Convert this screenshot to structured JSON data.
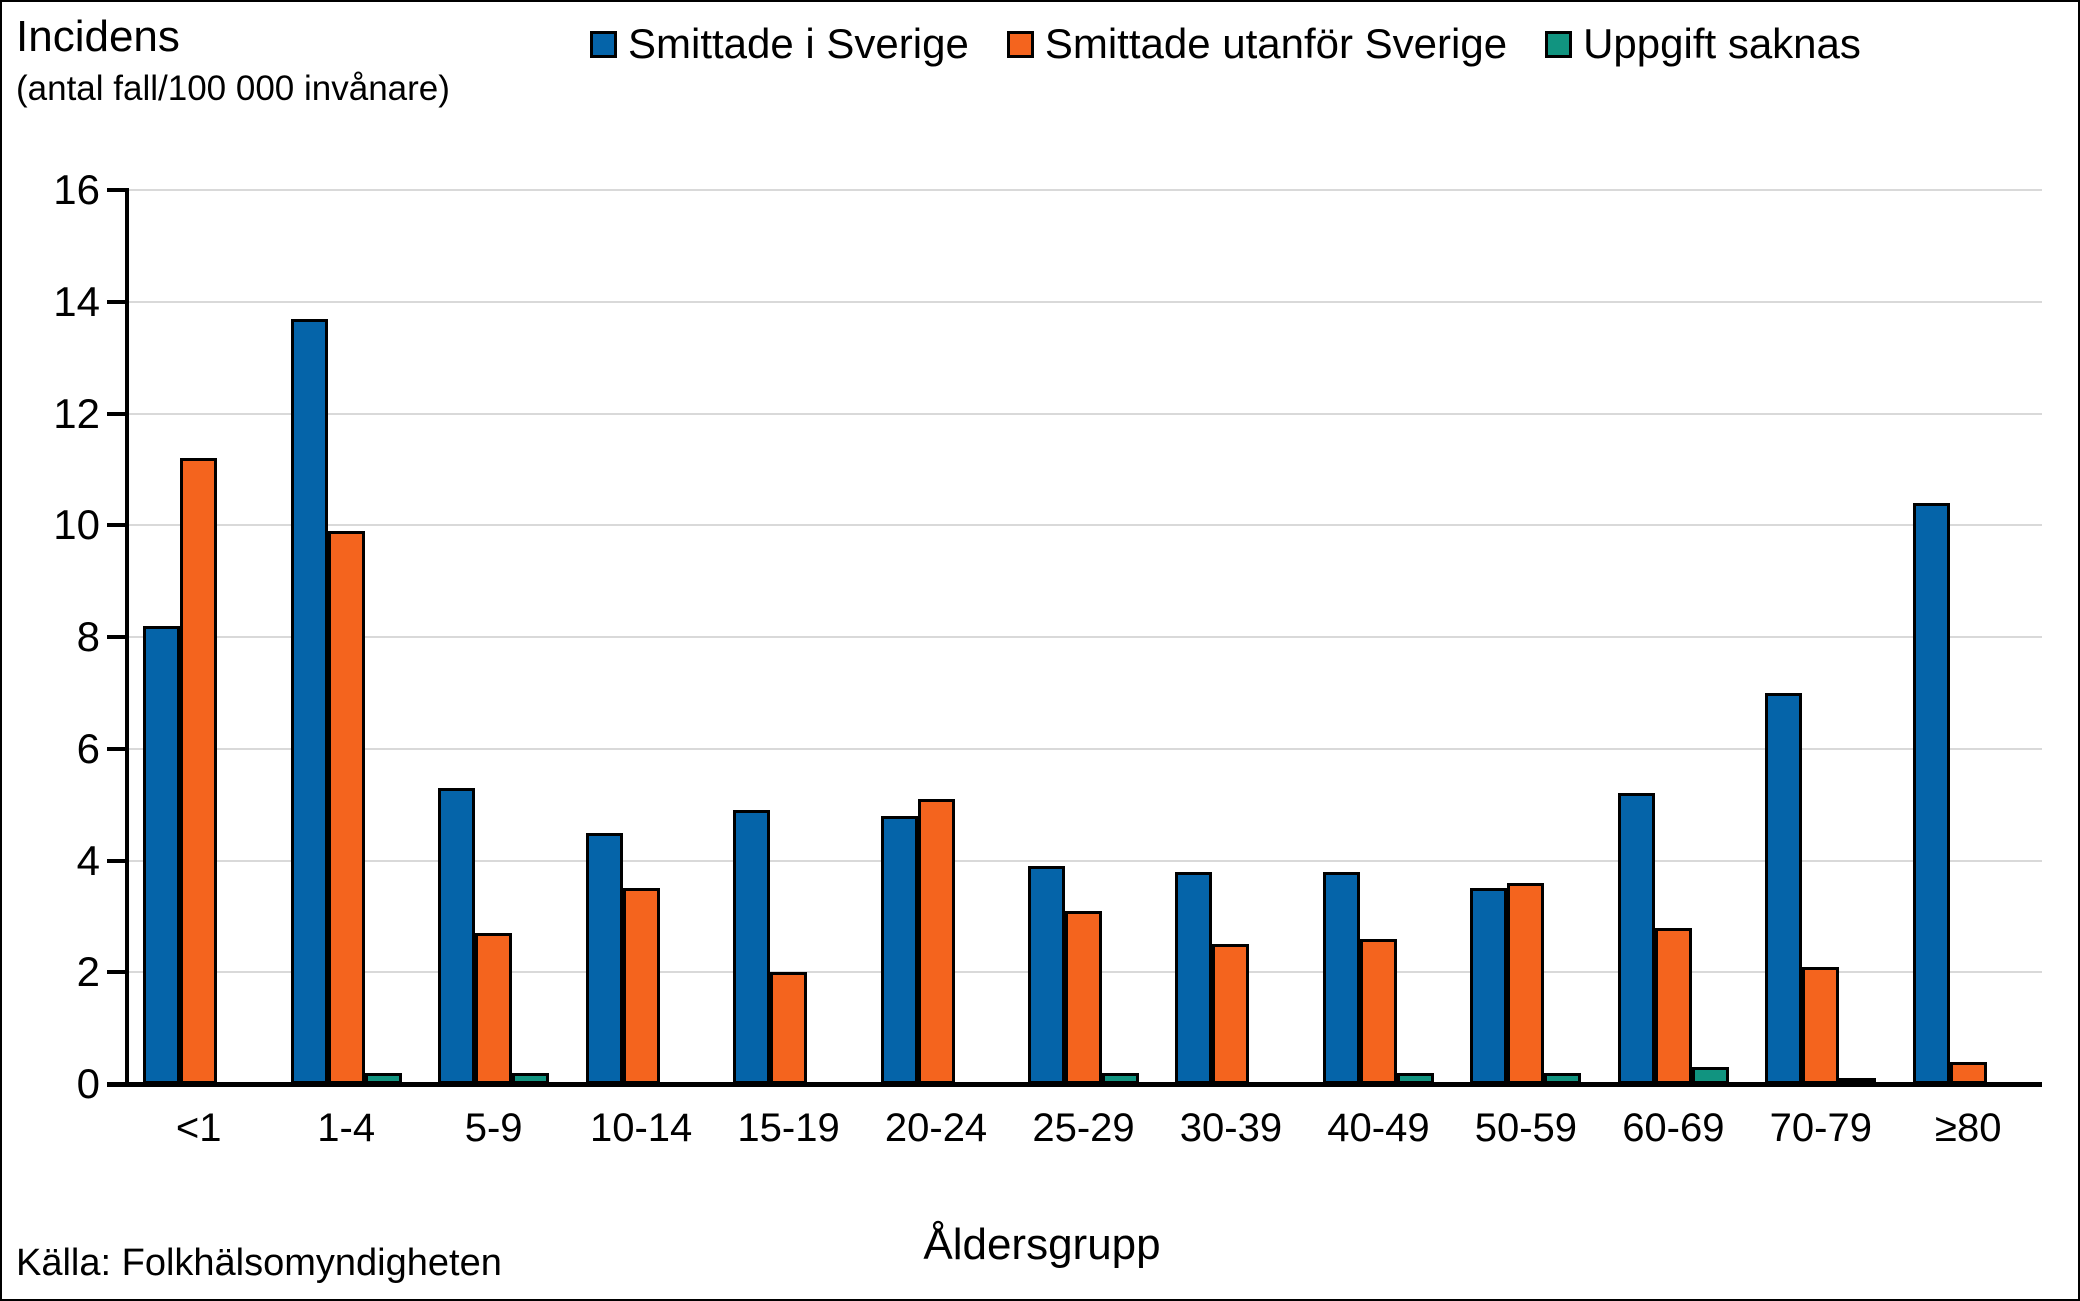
{
  "y_axis_title": {
    "line1": "Incidens",
    "line2": "(antal fall/100 000 invånare)"
  },
  "x_axis_title": "Åldersgrupp",
  "source": "Källa: Folkhälsomyndigheten",
  "colors": {
    "grid": "#d9d9d9",
    "axis": "#000000",
    "bar_border": "#000000",
    "background": "#ffffff"
  },
  "chart_data": {
    "type": "bar",
    "title": "",
    "xlabel": "Åldersgrupp",
    "ylabel": "Incidens (antal fall/100 000 invånare)",
    "ylim": [
      0,
      16
    ],
    "ytick_step": 2,
    "grid": true,
    "legend_position": "top",
    "categories": [
      "<1",
      "1-4",
      "5-9",
      "10-14",
      "15-19",
      "20-24",
      "25-29",
      "30-39",
      "40-49",
      "50-59",
      "60-69",
      "70-79",
      "≥80"
    ],
    "series": [
      {
        "name": "Smittade i Sverige",
        "color": "#0564a9",
        "values": [
          8.2,
          13.7,
          5.3,
          4.5,
          4.9,
          4.8,
          3.9,
          3.8,
          3.8,
          3.5,
          5.2,
          7.0,
          10.4
        ]
      },
      {
        "name": "Smittade utanför Sverige",
        "color": "#f4641e",
        "values": [
          11.2,
          9.9,
          2.7,
          3.5,
          2.0,
          5.1,
          3.1,
          2.5,
          2.6,
          3.6,
          2.8,
          2.1,
          0.4
        ]
      },
      {
        "name": "Uppgift saknas",
        "color": "#119480",
        "values": [
          0,
          0.2,
          0.2,
          0,
          0,
          0,
          0.2,
          0,
          0.2,
          0.2,
          0.3,
          0.1,
          0
        ]
      }
    ]
  }
}
